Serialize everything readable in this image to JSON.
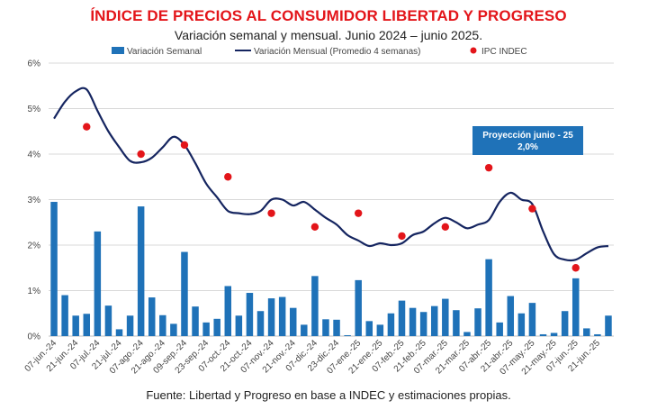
{
  "chart_data": {
    "type": "bar",
    "title": "ÍNDICE DE PRECIOS AL CONSUMIDOR LIBERTAD Y PROGRESO",
    "subtitle": "Variación semanal y mensual. Junio 2024 – junio 2025.",
    "source": "Fuente: Libertad y Progreso en base a INDEC y estimaciones propias.",
    "ylim": [
      0,
      6
    ],
    "yticks": [
      "0%",
      "1%",
      "2%",
      "3%",
      "4%",
      "5%",
      "6%"
    ],
    "grid": true,
    "legend_position": "top",
    "x_tick_labels": [
      "07-jun.-24",
      "21-jun.-24",
      "07-jul.-24",
      "21-jul.-24",
      "07-ago.-24",
      "21-ago.-24",
      "09-sep.-24",
      "23-sep.-24",
      "07-oct.-24",
      "21-oct.-24",
      "07-nov.-24",
      "21-nov.-24",
      "07-dic.-24",
      "23-dic.-24",
      "07-ene.-25",
      "21-ene.-25",
      "07-feb.-25",
      "21-feb.-25",
      "07-mar.-25",
      "21-mar.-25",
      "07-abr.-25",
      "21-abr.-25",
      "07-may.-25",
      "21-may.-25",
      "07-jun.-25",
      "21-jun.-25"
    ],
    "series": [
      {
        "name": "Variación Semanal",
        "type": "bar",
        "color": "#1f72b8",
        "values": [
          2.95,
          0.9,
          0.45,
          0.49,
          2.3,
          0.67,
          0.15,
          0.45,
          2.85,
          0.85,
          0.46,
          0.27,
          1.85,
          0.65,
          0.3,
          0.38,
          1.1,
          0.45,
          0.95,
          0.55,
          0.83,
          0.86,
          0.62,
          0.25,
          1.32,
          0.37,
          0.36,
          0.02,
          1.23,
          0.33,
          0.25,
          0.5,
          0.78,
          0.62,
          0.53,
          0.66,
          0.82,
          0.57,
          0.09,
          0.61,
          1.69,
          0.3,
          0.88,
          0.5,
          0.73,
          0.04,
          0.07,
          0.55,
          1.27,
          0.17,
          0.04,
          0.45
        ]
      },
      {
        "name": "Variación Mensual (Promedio 4 semanas)",
        "type": "line",
        "color": "#152560",
        "values": [
          4.78,
          5.15,
          5.38,
          5.42,
          4.95,
          4.5,
          4.15,
          3.85,
          3.82,
          3.92,
          4.15,
          4.38,
          4.2,
          3.8,
          3.35,
          3.05,
          2.75,
          2.7,
          2.68,
          2.75,
          3.0,
          3.0,
          2.87,
          2.95,
          2.78,
          2.6,
          2.45,
          2.22,
          2.1,
          1.98,
          2.04,
          2.0,
          2.04,
          2.22,
          2.3,
          2.48,
          2.6,
          2.5,
          2.37,
          2.45,
          2.55,
          2.95,
          3.15,
          3.0,
          2.9,
          2.3,
          1.8,
          1.68,
          1.68,
          1.82,
          1.95,
          1.98
        ]
      },
      {
        "name": "IPC INDEC",
        "type": "scatter",
        "color": "#e3151a",
        "points": [
          [
            3,
            4.6
          ],
          [
            8,
            4.0
          ],
          [
            12,
            4.2
          ],
          [
            16,
            3.5
          ],
          [
            20,
            2.7
          ],
          [
            24,
            2.4
          ],
          [
            28,
            2.7
          ],
          [
            32,
            2.2
          ],
          [
            36,
            2.4
          ],
          [
            40,
            3.7
          ],
          [
            44,
            2.8
          ],
          [
            48,
            1.5
          ]
        ]
      }
    ],
    "annotation": {
      "line1": "Proyección junio - 25",
      "line2": "2,0%",
      "color": "#1f72b8"
    }
  }
}
